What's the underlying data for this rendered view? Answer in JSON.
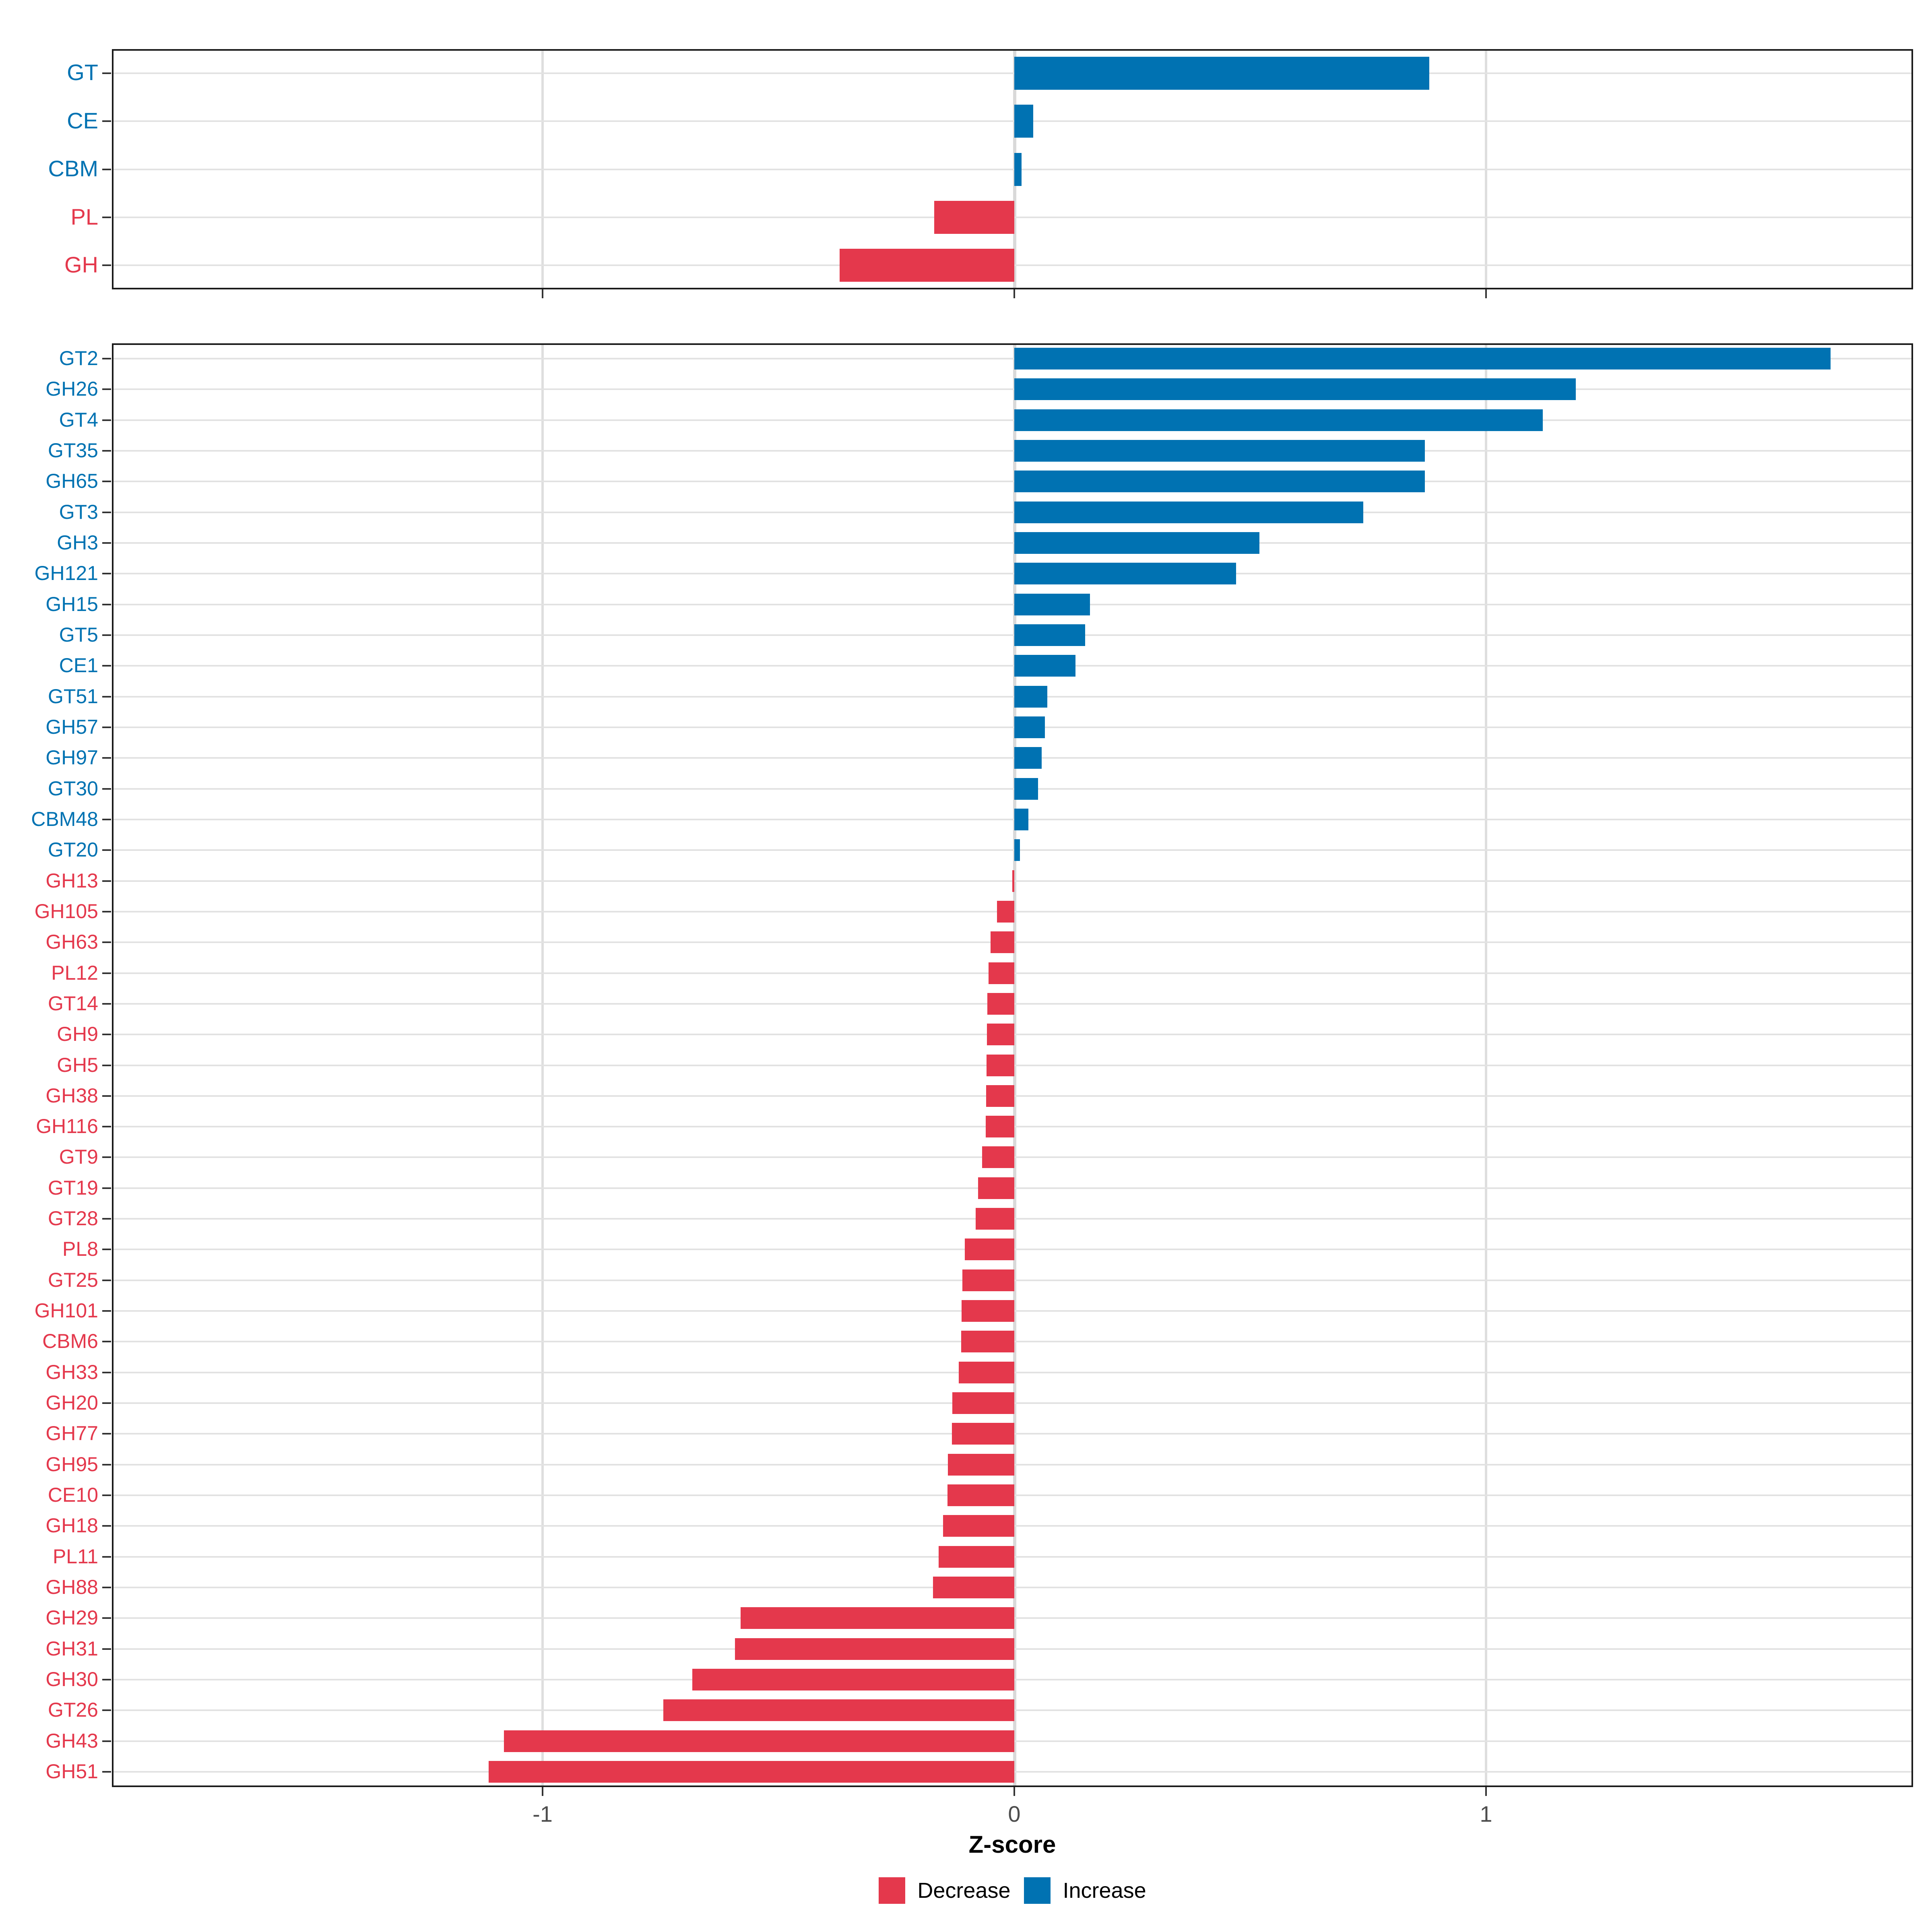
{
  "axis": {
    "xlabel": "Z-score",
    "ticks": [
      {
        "label": "-1",
        "value": -1
      },
      {
        "label": "0",
        "value": 0
      },
      {
        "label": "1",
        "value": 1
      }
    ]
  },
  "legend": {
    "items": [
      {
        "label": "Decrease",
        "color": "#e4384c"
      },
      {
        "label": "Increase",
        "color": "#0072b2"
      }
    ]
  },
  "colors": {
    "decrease": "#e4384c",
    "increase": "#0072b2",
    "grid": "#e2e2e2",
    "axis_text": "#4d4d4d",
    "panel_border": "#1a1a1a"
  },
  "chart_data": [
    {
      "type": "bar",
      "orientation": "horizontal",
      "panel": "summary",
      "title": "",
      "xlabel": "Z-score",
      "xlim": [
        -1.92,
        1.9
      ],
      "grid": "on",
      "legend_position": "bottom",
      "categories": [
        "GT",
        "CE",
        "CBM",
        "PL",
        "GH"
      ],
      "values": [
        0.88,
        0.04,
        0.015,
        -0.17,
        -0.37
      ]
    },
    {
      "type": "bar",
      "orientation": "horizontal",
      "panel": "families",
      "title": "",
      "xlabel": "Z-score",
      "xlim": [
        -1.92,
        1.9
      ],
      "grid": "on",
      "legend_position": "bottom",
      "categories": [
        "GT2",
        "GH26",
        "GT4",
        "GT35",
        "GH65",
        "GT3",
        "GH3",
        "GH121",
        "GH15",
        "GT5",
        "CE1",
        "GT51",
        "GH57",
        "GH97",
        "GT30",
        "CBM48",
        "GT20",
        "GH13",
        "GH105",
        "GH63",
        "PL12",
        "GT14",
        "GH9",
        "GH5",
        "GH38",
        "GH116",
        "GT9",
        "GT19",
        "GT28",
        "PL8",
        "GT25",
        "GH101",
        "CBM6",
        "GH33",
        "GH20",
        "GH77",
        "GH95",
        "CE10",
        "GH18",
        "PL11",
        "GH88",
        "GH29",
        "GH31",
        "GH30",
        "GT26",
        "GH43",
        "GH51"
      ],
      "values": [
        1.73,
        1.19,
        1.12,
        0.87,
        0.87,
        0.74,
        0.52,
        0.47,
        0.16,
        0.15,
        0.13,
        0.07,
        0.065,
        0.058,
        0.05,
        0.03,
        0.012,
        -0.004,
        -0.037,
        -0.05,
        -0.055,
        -0.057,
        -0.058,
        -0.059,
        -0.06,
        -0.061,
        -0.068,
        -0.077,
        -0.082,
        -0.105,
        -0.11,
        -0.112,
        -0.113,
        -0.118,
        -0.131,
        -0.132,
        -0.141,
        -0.142,
        -0.151,
        -0.16,
        -0.172,
        -0.58,
        -0.592,
        -0.683,
        -0.744,
        -1.082,
        -1.114
      ]
    }
  ]
}
